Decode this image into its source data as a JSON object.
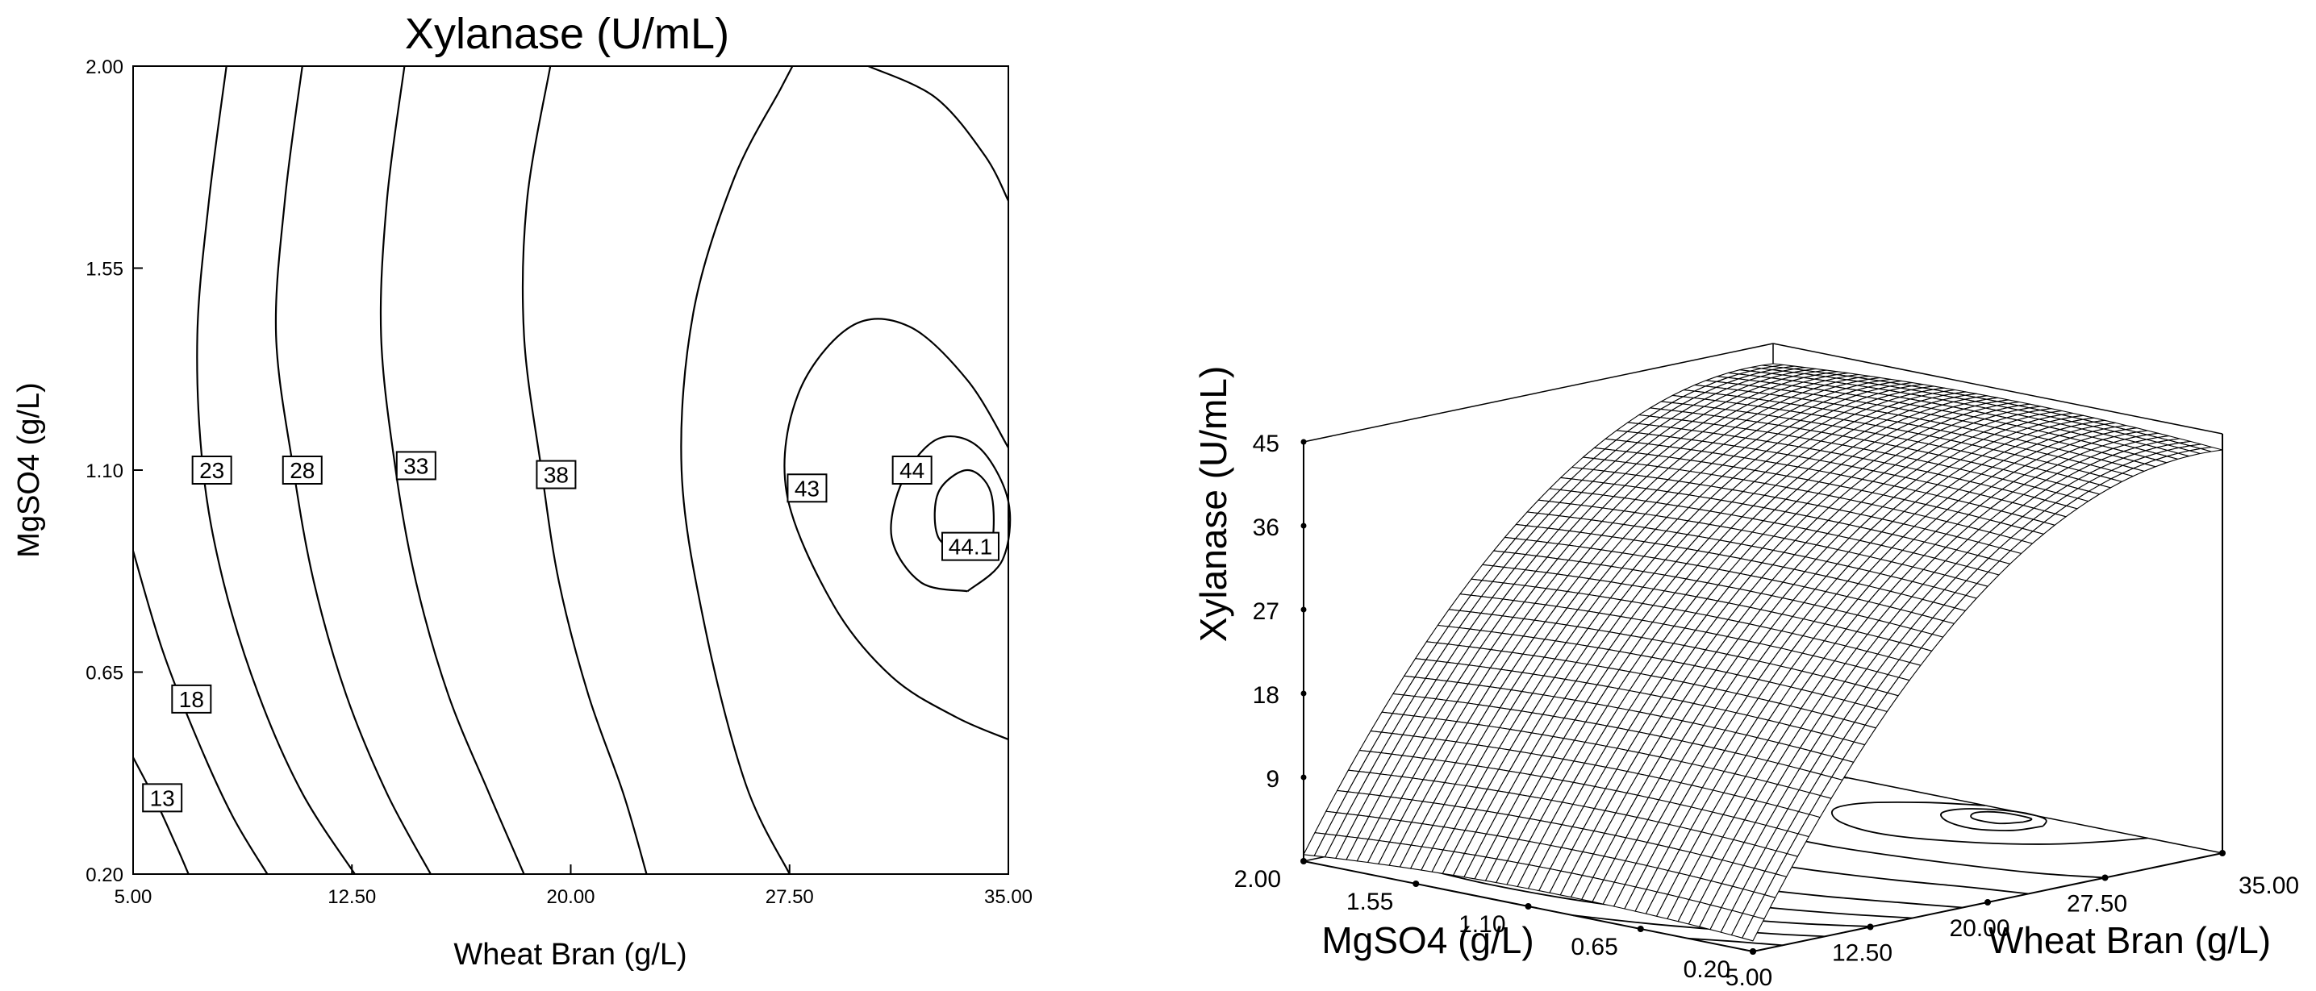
{
  "chart_data": [
    {
      "type": "contour",
      "title": "Xylanase (U/mL)",
      "xlabel": "Wheat Bran (g/L)",
      "ylabel": "MgSO4 (g/L)",
      "xlim": [
        5.0,
        35.0
      ],
      "ylim": [
        0.2,
        2.0
      ],
      "x_ticks": [
        "5.00",
        "12.50",
        "20.00",
        "27.50",
        "35.00"
      ],
      "y_ticks": [
        "0.20",
        "0.65",
        "1.10",
        "1.55",
        "2.00"
      ],
      "contour_levels": [
        "13",
        "18",
        "23",
        "28",
        "33",
        "38",
        "43",
        "44",
        "44.1"
      ],
      "contours": [
        {
          "level": "13",
          "points": [
            [
              5.0,
              0.46
            ],
            [
              5.8,
              0.36
            ],
            [
              6.5,
              0.26
            ],
            [
              6.9,
              0.2
            ]
          ]
        },
        {
          "level": "18",
          "points": [
            [
              5.0,
              0.92
            ],
            [
              6.0,
              0.7
            ],
            [
              7.2,
              0.5
            ],
            [
              8.4,
              0.33
            ],
            [
              9.6,
              0.2
            ]
          ]
        },
        {
          "level": "23",
          "points": [
            [
              8.2,
              2.0
            ],
            [
              7.6,
              1.7
            ],
            [
              7.2,
              1.4
            ],
            [
              7.4,
              1.1
            ],
            [
              8.1,
              0.85
            ],
            [
              9.3,
              0.6
            ],
            [
              10.8,
              0.38
            ],
            [
              12.6,
              0.2
            ]
          ]
        },
        {
          "level": "28",
          "points": [
            [
              10.8,
              2.0
            ],
            [
              10.2,
              1.7
            ],
            [
              9.9,
              1.4
            ],
            [
              10.5,
              1.1
            ],
            [
              11.2,
              0.85
            ],
            [
              12.3,
              0.6
            ],
            [
              13.7,
              0.38
            ],
            [
              15.2,
              0.2
            ]
          ]
        },
        {
          "level": "33",
          "points": [
            [
              14.3,
              2.0
            ],
            [
              13.7,
              1.7
            ],
            [
              13.5,
              1.4
            ],
            [
              14.0,
              1.1
            ],
            [
              14.7,
              0.85
            ],
            [
              15.8,
              0.6
            ],
            [
              17.2,
              0.38
            ],
            [
              18.4,
              0.2
            ]
          ]
        },
        {
          "level": "38",
          "points": [
            [
              19.3,
              2.0
            ],
            [
              18.5,
              1.7
            ],
            [
              18.4,
              1.4
            ],
            [
              19.0,
              1.1
            ],
            [
              19.6,
              0.85
            ],
            [
              20.6,
              0.6
            ],
            [
              21.8,
              0.38
            ],
            [
              22.6,
              0.2
            ]
          ]
        },
        {
          "level": "43",
          "points": [
            [
              35.0,
              0.5
            ],
            [
              33.2,
              0.55
            ],
            [
              31.0,
              0.64
            ],
            [
              29.0,
              0.8
            ],
            [
              27.4,
              1.05
            ],
            [
              27.8,
              1.27
            ],
            [
              29.6,
              1.42
            ],
            [
              31.6,
              1.42
            ],
            [
              33.6,
              1.3
            ],
            [
              35.0,
              1.15
            ]
          ]
        },
        {
          "level": "44",
          "points": [
            [
              33.6,
              0.83
            ],
            [
              32.0,
              0.85
            ],
            [
              31.0,
              0.95
            ],
            [
              31.4,
              1.08
            ],
            [
              32.6,
              1.17
            ],
            [
              34.0,
              1.15
            ],
            [
              35.0,
              1.03
            ],
            [
              34.8,
              0.9
            ],
            [
              33.6,
              0.83
            ]
          ]
        },
        {
          "level": "44.1",
          "points": [
            [
              33.6,
              0.91
            ],
            [
              32.6,
              0.95
            ],
            [
              32.6,
              1.05
            ],
            [
              33.6,
              1.1
            ],
            [
              34.4,
              1.05
            ],
            [
              34.4,
              0.93
            ],
            [
              33.6,
              0.91
            ]
          ]
        },
        {
          "level": "",
          "points": [
            [
              27.5,
              0.2
            ],
            [
              26.0,
              0.4
            ],
            [
              24.6,
              0.75
            ],
            [
              23.8,
              1.1
            ],
            [
              24.2,
              1.45
            ],
            [
              25.6,
              1.75
            ],
            [
              27.2,
              1.95
            ],
            [
              27.6,
              2.0
            ]
          ]
        },
        {
          "level": "",
          "points": [
            [
              30.2,
              2.0
            ],
            [
              32.5,
              1.93
            ],
            [
              34.2,
              1.8
            ],
            [
              35.0,
              1.7
            ]
          ]
        }
      ]
    },
    {
      "type": "surface3d",
      "zlabel": "Xylanase (U/mL)",
      "xlabel": "Wheat Bran (g/L)",
      "ylabel": "MgSO4 (g/L)",
      "z_ticks": [
        "9",
        "18",
        "27",
        "36",
        "45"
      ],
      "x_ticks": [
        "5.00",
        "12.50",
        "20.00",
        "27.50",
        "35.00"
      ],
      "y_ticks": [
        "0.20",
        "0.65",
        "1.10",
        "1.55",
        "2.00"
      ],
      "xlim": [
        5.0,
        35.0
      ],
      "ylim": [
        0.2,
        2.0
      ],
      "zlim": [
        0,
        45
      ]
    }
  ]
}
